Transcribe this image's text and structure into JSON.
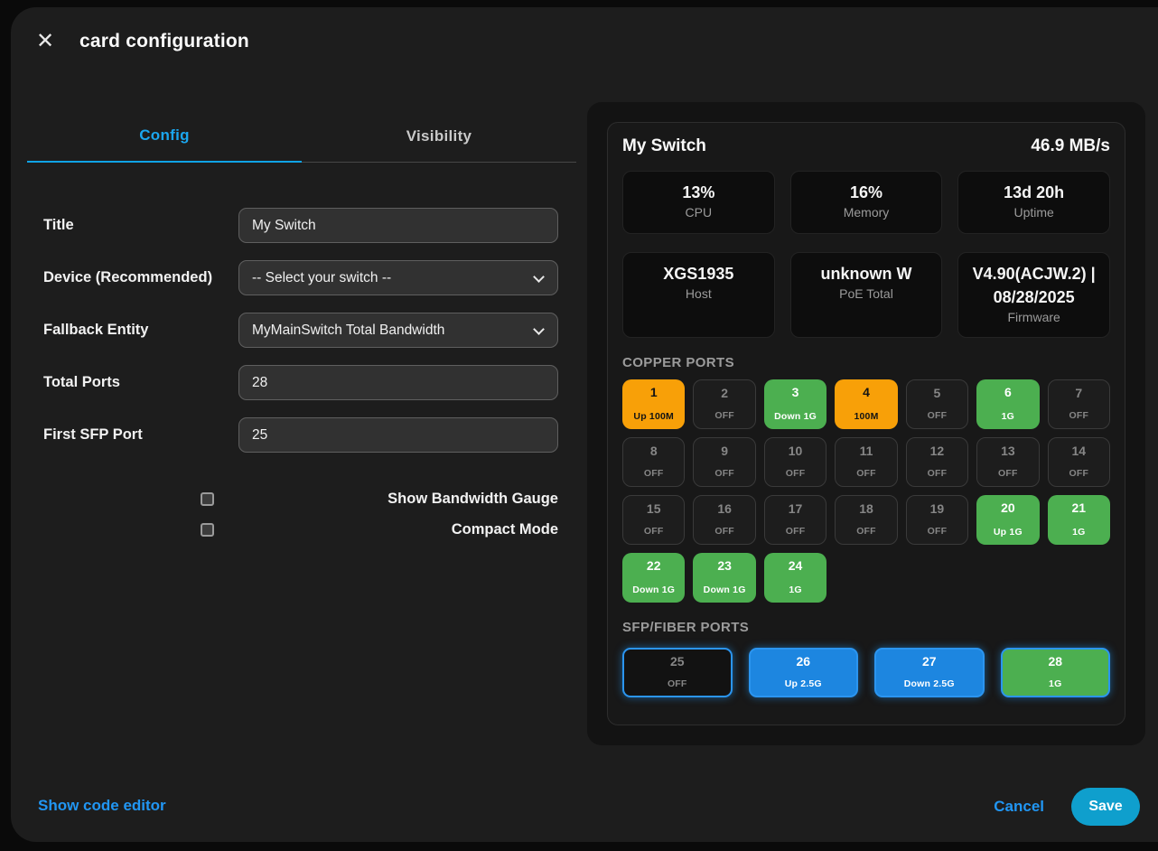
{
  "dialog": {
    "title": "card configuration",
    "close_icon": "✕"
  },
  "tabs": [
    {
      "label": "Config",
      "active": true
    },
    {
      "label": "Visibility",
      "active": false
    }
  ],
  "form": {
    "fields": [
      {
        "label": "Title",
        "type": "text",
        "value": "My Switch"
      },
      {
        "label": "Device (Recommended)",
        "type": "select",
        "value": "-- Select your switch --"
      },
      {
        "label": "Fallback Entity",
        "type": "select",
        "value": "MyMainSwitch Total Bandwidth"
      },
      {
        "label": "Total Ports",
        "type": "text",
        "value": "28"
      },
      {
        "label": "First SFP Port",
        "type": "text",
        "value": "25"
      }
    ],
    "checkboxes": [
      {
        "label": "Show Bandwidth Gauge",
        "checked": false
      },
      {
        "label": "Compact Mode",
        "checked": false
      }
    ]
  },
  "preview": {
    "title": "My Switch",
    "bandwidth": "46.9 MB/s",
    "stats": [
      {
        "value": "13%",
        "label": "CPU"
      },
      {
        "value": "16%",
        "label": "Memory"
      },
      {
        "value": "13d 20h",
        "label": "Uptime"
      },
      {
        "value": "XGS1935",
        "label": "Host"
      },
      {
        "value": "unknown W",
        "label": "PoE Total"
      },
      {
        "value": "V4.90(ACJW.2) | 08/28/2025",
        "label": "Firmware"
      }
    ],
    "copper_ports_label": "COPPER PORTS",
    "sfp_ports_label": "SFP/FIBER PORTS",
    "copper_ports": [
      {
        "num": "1",
        "status": "Up 100M",
        "state": "orange"
      },
      {
        "num": "2",
        "status": "OFF",
        "state": "off"
      },
      {
        "num": "3",
        "status": "Down 1G",
        "state": "green"
      },
      {
        "num": "4",
        "status": "100M",
        "state": "orange"
      },
      {
        "num": "5",
        "status": "OFF",
        "state": "off"
      },
      {
        "num": "6",
        "status": "1G",
        "state": "green"
      },
      {
        "num": "7",
        "status": "OFF",
        "state": "off"
      },
      {
        "num": "8",
        "status": "OFF",
        "state": "off"
      },
      {
        "num": "9",
        "status": "OFF",
        "state": "off"
      },
      {
        "num": "10",
        "status": "OFF",
        "state": "off"
      },
      {
        "num": "11",
        "status": "OFF",
        "state": "off"
      },
      {
        "num": "12",
        "status": "OFF",
        "state": "off"
      },
      {
        "num": "13",
        "status": "OFF",
        "state": "off"
      },
      {
        "num": "14",
        "status": "OFF",
        "state": "off"
      },
      {
        "num": "15",
        "status": "OFF",
        "state": "off"
      },
      {
        "num": "16",
        "status": "OFF",
        "state": "off"
      },
      {
        "num": "17",
        "status": "OFF",
        "state": "off"
      },
      {
        "num": "18",
        "status": "OFF",
        "state": "off"
      },
      {
        "num": "19",
        "status": "OFF",
        "state": "off"
      },
      {
        "num": "20",
        "status": "Up 1G",
        "state": "green"
      },
      {
        "num": "21",
        "status": "1G",
        "state": "green"
      },
      {
        "num": "22",
        "status": "Down 1G",
        "state": "green"
      },
      {
        "num": "23",
        "status": "Down 1G",
        "state": "green"
      },
      {
        "num": "24",
        "status": "1G",
        "state": "green"
      }
    ],
    "sfp_ports": [
      {
        "num": "25",
        "status": "OFF",
        "state": "sfp-off"
      },
      {
        "num": "26",
        "status": "Up 2.5G",
        "state": "blue"
      },
      {
        "num": "27",
        "status": "Down 2.5G",
        "state": "blue"
      },
      {
        "num": "28",
        "status": "1G",
        "state": "green"
      }
    ]
  },
  "footer": {
    "show_code_editor": "Show code editor",
    "cancel": "Cancel",
    "save": "Save"
  },
  "colors": {
    "accent_tab": "#0fa3e6",
    "link_blue": "#2196f3",
    "save_button": "#0f9fcd",
    "port_orange": "#f8a008",
    "port_green": "#4caf50",
    "port_blue": "#1d86e0",
    "sfp_border_glow": "#2b95f0"
  }
}
